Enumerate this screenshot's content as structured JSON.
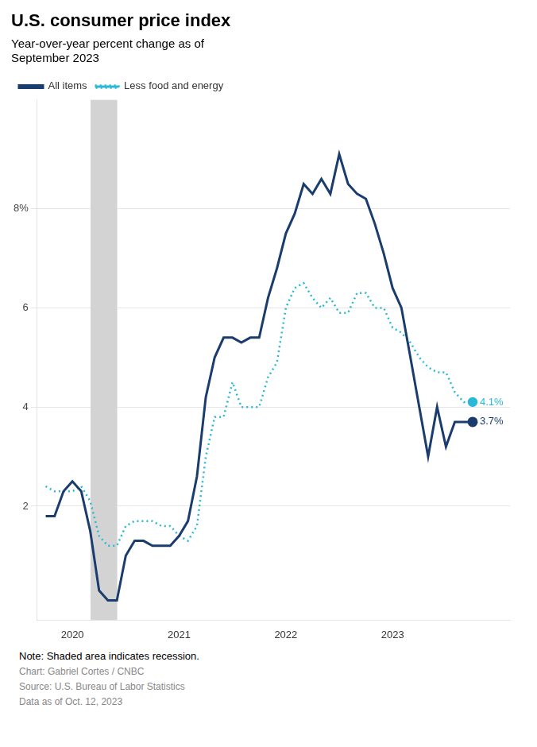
{
  "chart_data": {
    "type": "line",
    "title": "U.S. consumer price index",
    "subtitle": "Year-over-year percent change as of\nSeptember 2023",
    "note": "Note: Shaded area indicates recession.",
    "chart_credit": "Chart: Gabriel Cortes / CNBC",
    "source": "Source: U.S. Bureau of Labor Statistics",
    "data_date": "Data as of Oct. 12, 2023",
    "x": [
      2019.75,
      2019.833,
      2019.917,
      2020.0,
      2020.083,
      2020.167,
      2020.25,
      2020.333,
      2020.417,
      2020.5,
      2020.583,
      2020.667,
      2020.75,
      2020.833,
      2020.917,
      2021.0,
      2021.083,
      2021.167,
      2021.25,
      2021.333,
      2021.417,
      2021.5,
      2021.583,
      2021.667,
      2021.75,
      2021.833,
      2021.917,
      2022.0,
      2022.083,
      2022.167,
      2022.25,
      2022.333,
      2022.417,
      2022.5,
      2022.583,
      2022.667,
      2022.75,
      2022.833,
      2022.917,
      2023.0,
      2023.083,
      2023.167,
      2023.25,
      2023.333,
      2023.417,
      2023.5,
      2023.583,
      2023.667,
      2023.75
    ],
    "series": [
      {
        "name": "All items",
        "color": "#1a3d6e",
        "line_style": "solid",
        "values": [
          1.8,
          1.8,
          2.3,
          2.5,
          2.3,
          1.5,
          0.3,
          0.1,
          0.1,
          1.0,
          1.3,
          1.3,
          1.2,
          1.2,
          1.2,
          1.4,
          1.7,
          2.6,
          4.2,
          5.0,
          5.4,
          5.4,
          5.3,
          5.4,
          5.4,
          6.2,
          6.8,
          7.5,
          7.9,
          8.5,
          8.3,
          8.6,
          8.3,
          9.1,
          8.5,
          8.3,
          8.2,
          7.7,
          7.1,
          6.4,
          6.0,
          5.0,
          4.0,
          3.0,
          4.0,
          3.2,
          3.7,
          3.7,
          3.7
        ]
      },
      {
        "name": "Less food and energy",
        "color": "#29b8d8",
        "line_style": "dotted",
        "values": [
          2.4,
          2.3,
          2.3,
          2.3,
          2.4,
          2.1,
          1.4,
          1.2,
          1.2,
          1.6,
          1.7,
          1.7,
          1.7,
          1.6,
          1.6,
          1.4,
          1.3,
          1.6,
          3.0,
          3.8,
          3.8,
          4.5,
          4.0,
          4.0,
          4.0,
          4.6,
          4.9,
          6.0,
          6.4,
          6.5,
          6.2,
          6.0,
          6.2,
          5.9,
          5.9,
          6.3,
          6.3,
          6.0,
          6.0,
          5.6,
          5.5,
          5.3,
          5.0,
          4.8,
          4.7,
          4.7,
          4.3,
          4.1,
          4.1
        ]
      }
    ],
    "annotations": [
      {
        "text": "4.1%",
        "x": 2023.75,
        "y": 4.1,
        "color": "#29b8d8"
      },
      {
        "text": "3.7%",
        "x": 2023.75,
        "y": 3.7,
        "color": "#1a3d6e"
      }
    ],
    "recession": {
      "start": 2020.17,
      "end": 2020.42,
      "color": "#d3d3d3"
    },
    "xlim": [
      2019.67,
      2024.1
    ],
    "xticks": [
      2020,
      2021,
      2022,
      2023
    ],
    "ylim": [
      -0.3,
      10.2
    ],
    "yticks": [
      2,
      4,
      6,
      {
        "value": 8,
        "label": "8%"
      }
    ],
    "grid": "y",
    "legend": "upper left"
  }
}
